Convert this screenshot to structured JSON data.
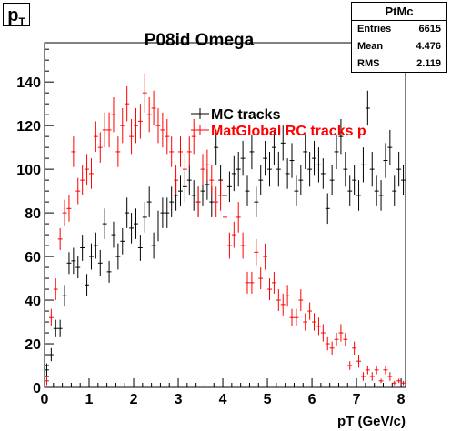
{
  "corner_label": {
    "main": "p",
    "sub": "T"
  },
  "stats": {
    "title": "PtMc",
    "rows": [
      {
        "label": "Entries",
        "value": "6615"
      },
      {
        "label": "Mean",
        "value": "4.476"
      },
      {
        "label": "RMS",
        "value": "2.119"
      }
    ]
  },
  "chart_data": {
    "type": "scatter",
    "title": "P08id Omega",
    "xlabel": "pT (GeV/c)",
    "ylabel": "",
    "xlim": [
      0,
      8.1
    ],
    "ylim": [
      0,
      158
    ],
    "xticks": [
      0,
      1,
      2,
      3,
      4,
      5,
      6,
      7,
      8
    ],
    "yticks": [
      0,
      20,
      40,
      60,
      80,
      100,
      120,
      140
    ],
    "grid": false,
    "legend_position": "top-right",
    "series": [
      {
        "name": "MC tracks",
        "color": "#000000",
        "x": [
          0.05,
          0.15,
          0.25,
          0.35,
          0.45,
          0.55,
          0.65,
          0.75,
          0.85,
          0.95,
          1.05,
          1.15,
          1.25,
          1.35,
          1.45,
          1.55,
          1.65,
          1.75,
          1.85,
          1.95,
          2.05,
          2.15,
          2.25,
          2.35,
          2.45,
          2.55,
          2.65,
          2.75,
          2.85,
          2.95,
          3.05,
          3.15,
          3.25,
          3.35,
          3.45,
          3.55,
          3.65,
          3.75,
          3.85,
          3.95,
          4.05,
          4.15,
          4.25,
          4.35,
          4.45,
          4.55,
          4.65,
          4.75,
          4.85,
          4.95,
          5.05,
          5.15,
          5.25,
          5.35,
          5.45,
          5.55,
          5.65,
          5.75,
          5.85,
          5.95,
          6.05,
          6.15,
          6.25,
          6.35,
          6.45,
          6.55,
          6.65,
          6.75,
          6.85,
          6.95,
          7.05,
          7.15,
          7.25,
          7.35,
          7.45,
          7.55,
          7.65,
          7.75,
          7.85,
          7.95,
          8.05
        ],
        "y": [
          8,
          15,
          27,
          27,
          42,
          57,
          58,
          55,
          64,
          47,
          60,
          65,
          57,
          75,
          53,
          70,
          60,
          67,
          80,
          73,
          75,
          64,
          78,
          85,
          65,
          74,
          80,
          80,
          85,
          88,
          90,
          92,
          95,
          88,
          85,
          90,
          93,
          85,
          110,
          95,
          88,
          92,
          98,
          100,
          105,
          90,
          108,
          85,
          95,
          105,
          100,
          110,
          100,
          112,
          98,
          104,
          90,
          95,
          108,
          100,
          105,
          102,
          98,
          82,
          95,
          108,
          115,
          100,
          90,
          95,
          88,
          102,
          128,
          100,
          90,
          88,
          104,
          110,
          90,
          100,
          95
        ],
        "err": [
          3,
          3,
          4,
          4,
          5,
          5,
          6,
          5,
          6,
          5,
          6,
          6,
          6,
          7,
          5,
          6,
          6,
          6,
          7,
          7,
          7,
          6,
          7,
          7,
          6,
          7,
          7,
          7,
          7,
          7,
          7,
          7,
          7,
          7,
          7,
          7,
          7,
          7,
          8,
          7,
          7,
          7,
          8,
          8,
          8,
          7,
          8,
          7,
          7,
          8,
          8,
          8,
          8,
          8,
          7,
          8,
          7,
          7,
          8,
          8,
          8,
          8,
          7,
          7,
          7,
          8,
          8,
          8,
          7,
          7,
          7,
          8,
          8,
          8,
          7,
          7,
          8,
          8,
          7,
          8,
          7
        ]
      },
      {
        "name": "MatGlobal RC tracks p",
        "color": "#ff0000",
        "x": [
          0.05,
          0.15,
          0.25,
          0.35,
          0.45,
          0.55,
          0.65,
          0.75,
          0.85,
          0.95,
          1.05,
          1.15,
          1.25,
          1.35,
          1.45,
          1.55,
          1.65,
          1.75,
          1.85,
          1.95,
          2.05,
          2.15,
          2.25,
          2.35,
          2.45,
          2.55,
          2.65,
          2.75,
          2.85,
          2.95,
          3.05,
          3.15,
          3.25,
          3.35,
          3.45,
          3.55,
          3.65,
          3.75,
          3.85,
          3.95,
          4.05,
          4.15,
          4.25,
          4.35,
          4.45,
          4.55,
          4.65,
          4.75,
          4.85,
          4.95,
          5.05,
          5.15,
          5.25,
          5.35,
          5.45,
          5.55,
          5.65,
          5.75,
          5.85,
          5.95,
          6.05,
          6.15,
          6.25,
          6.35,
          6.45,
          6.55,
          6.65,
          6.75,
          6.85,
          6.95,
          7.05,
          7.15,
          7.25,
          7.35,
          7.45,
          7.55,
          7.65,
          7.75,
          7.85,
          7.95,
          8.05
        ],
        "y": [
          3,
          32,
          45,
          68,
          80,
          82,
          108,
          90,
          95,
          100,
          98,
          115,
          110,
          118,
          118,
          125,
          108,
          120,
          130,
          115,
          120,
          122,
          135,
          125,
          128,
          120,
          118,
          115,
          108,
          95,
          108,
          100,
          108,
          115,
          85,
          100,
          102,
          95,
          85,
          88,
          78,
          65,
          70,
          78,
          65,
          48,
          48,
          62,
          50,
          60,
          45,
          48,
          40,
          38,
          42,
          32,
          32,
          40,
          30,
          35,
          30,
          28,
          25,
          20,
          18,
          22,
          25,
          22,
          10,
          18,
          12,
          5,
          8,
          5,
          8,
          3,
          8,
          5,
          2,
          3,
          2
        ],
        "err": [
          2,
          4,
          5,
          5,
          6,
          6,
          7,
          6,
          7,
          7,
          7,
          7,
          7,
          8,
          8,
          8,
          7,
          8,
          8,
          8,
          8,
          8,
          9,
          8,
          8,
          8,
          8,
          8,
          7,
          7,
          7,
          7,
          7,
          8,
          7,
          7,
          7,
          7,
          7,
          7,
          7,
          6,
          6,
          7,
          6,
          5,
          5,
          6,
          5,
          6,
          5,
          5,
          5,
          5,
          5,
          4,
          4,
          5,
          4,
          4,
          4,
          4,
          4,
          3,
          3,
          3,
          4,
          3,
          2,
          3,
          3,
          2,
          2,
          2,
          2,
          1,
          2,
          2,
          1,
          1,
          1
        ]
      }
    ]
  }
}
